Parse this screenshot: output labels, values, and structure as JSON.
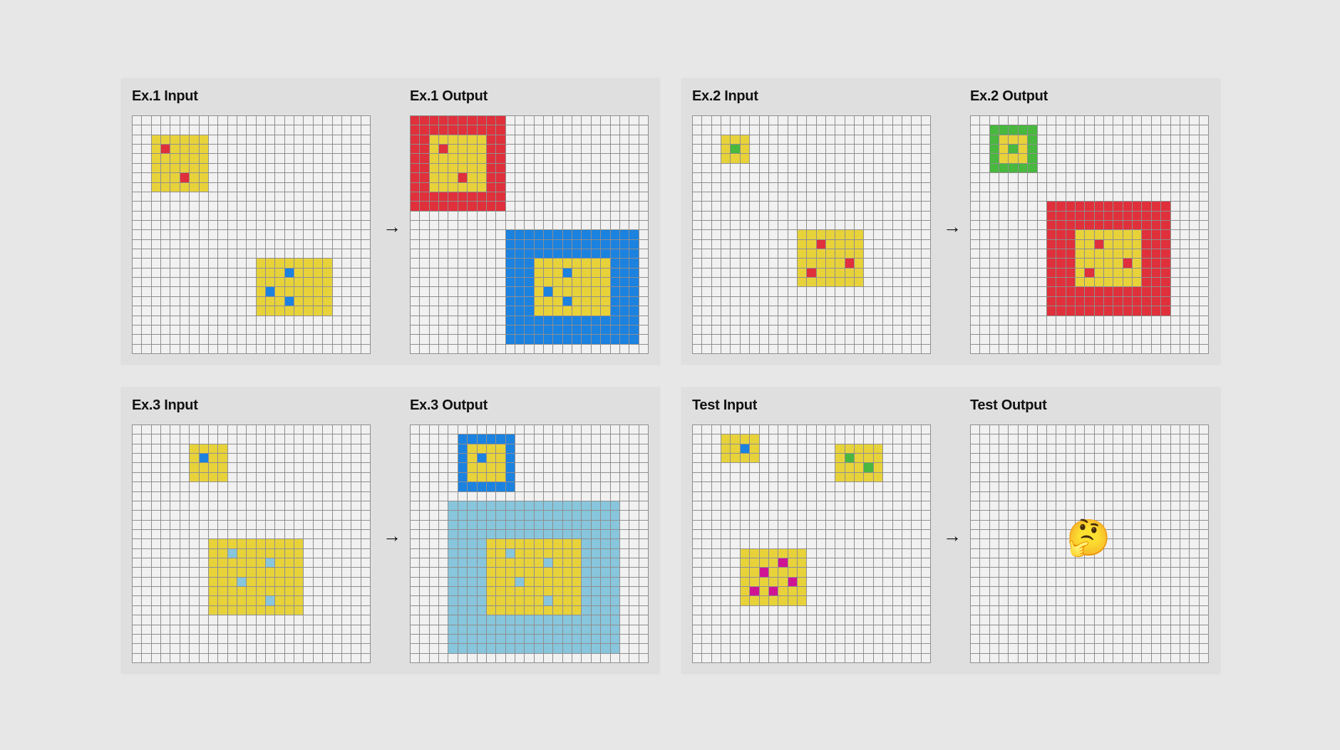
{
  "colors": {
    "Y": "#e8d23a",
    "R": "#e0303b",
    "B": "#1b82e0",
    "G": "#48b83e",
    "C": "#87c6dc",
    "M": "#cf1493"
  },
  "emoji": "🤔",
  "panels": [
    {
      "arrow": "→",
      "left": {
        "title": "Ex.1 Input",
        "rects": [
          {
            "r": 2,
            "c": 2,
            "h": 6,
            "w": 6,
            "color": "Y"
          },
          {
            "r": 15,
            "c": 13,
            "h": 6,
            "w": 8,
            "color": "Y"
          }
        ],
        "cells": [
          {
            "r": 3,
            "c": 3,
            "color": "R"
          },
          {
            "r": 6,
            "c": 5,
            "color": "R"
          },
          {
            "r": 16,
            "c": 16,
            "color": "B"
          },
          {
            "r": 18,
            "c": 14,
            "color": "B"
          },
          {
            "r": 19,
            "c": 16,
            "color": "B"
          }
        ]
      },
      "right": {
        "title": "Ex.1 Output",
        "rects": [
          {
            "r": 0,
            "c": 0,
            "h": 10,
            "w": 10,
            "color": "R"
          },
          {
            "r": 2,
            "c": 2,
            "h": 6,
            "w": 6,
            "color": "Y"
          },
          {
            "r": 12,
            "c": 10,
            "h": 12,
            "w": 14,
            "color": "B"
          },
          {
            "r": 15,
            "c": 13,
            "h": 6,
            "w": 8,
            "color": "Y"
          }
        ],
        "cells": [
          {
            "r": 3,
            "c": 3,
            "color": "R"
          },
          {
            "r": 6,
            "c": 5,
            "color": "R"
          },
          {
            "r": 16,
            "c": 16,
            "color": "B"
          },
          {
            "r": 18,
            "c": 14,
            "color": "B"
          },
          {
            "r": 19,
            "c": 16,
            "color": "B"
          }
        ]
      }
    },
    {
      "arrow": "→",
      "left": {
        "title": "Ex.2 Input",
        "rects": [
          {
            "r": 2,
            "c": 3,
            "h": 3,
            "w": 3,
            "color": "Y"
          },
          {
            "r": 12,
            "c": 11,
            "h": 6,
            "w": 7,
            "color": "Y"
          }
        ],
        "cells": [
          {
            "r": 3,
            "c": 4,
            "color": "G"
          },
          {
            "r": 13,
            "c": 13,
            "color": "R"
          },
          {
            "r": 15,
            "c": 16,
            "color": "R"
          },
          {
            "r": 16,
            "c": 12,
            "color": "R"
          }
        ]
      },
      "right": {
        "title": "Ex.2 Output",
        "rects": [
          {
            "r": 1,
            "c": 2,
            "h": 5,
            "w": 5,
            "color": "G"
          },
          {
            "r": 2,
            "c": 3,
            "h": 3,
            "w": 3,
            "color": "Y"
          },
          {
            "r": 9,
            "c": 8,
            "h": 12,
            "w": 13,
            "color": "R"
          },
          {
            "r": 12,
            "c": 11,
            "h": 6,
            "w": 7,
            "color": "Y"
          }
        ],
        "cells": [
          {
            "r": 3,
            "c": 4,
            "color": "G"
          },
          {
            "r": 13,
            "c": 13,
            "color": "R"
          },
          {
            "r": 15,
            "c": 16,
            "color": "R"
          },
          {
            "r": 16,
            "c": 12,
            "color": "R"
          }
        ]
      }
    },
    {
      "arrow": "→",
      "left": {
        "title": "Ex.3 Input",
        "rects": [
          {
            "r": 2,
            "c": 6,
            "h": 4,
            "w": 4,
            "color": "Y"
          },
          {
            "r": 12,
            "c": 8,
            "h": 8,
            "w": 10,
            "color": "Y"
          }
        ],
        "cells": [
          {
            "r": 3,
            "c": 7,
            "color": "B"
          },
          {
            "r": 13,
            "c": 10,
            "color": "C"
          },
          {
            "r": 14,
            "c": 14,
            "color": "C"
          },
          {
            "r": 16,
            "c": 11,
            "color": "C"
          },
          {
            "r": 18,
            "c": 14,
            "color": "C"
          }
        ]
      },
      "right": {
        "title": "Ex.3 Output",
        "rects": [
          {
            "r": 1,
            "c": 5,
            "h": 6,
            "w": 6,
            "color": "B"
          },
          {
            "r": 2,
            "c": 6,
            "h": 4,
            "w": 4,
            "color": "Y"
          },
          {
            "r": 8,
            "c": 4,
            "h": 16,
            "w": 18,
            "color": "C"
          },
          {
            "r": 12,
            "c": 8,
            "h": 8,
            "w": 10,
            "color": "Y"
          }
        ],
        "cells": [
          {
            "r": 3,
            "c": 7,
            "color": "B"
          },
          {
            "r": 13,
            "c": 10,
            "color": "C"
          },
          {
            "r": 14,
            "c": 14,
            "color": "C"
          },
          {
            "r": 16,
            "c": 11,
            "color": "C"
          },
          {
            "r": 18,
            "c": 14,
            "color": "C"
          }
        ]
      }
    },
    {
      "arrow": "→",
      "left": {
        "title": "Test Input",
        "rects": [
          {
            "r": 1,
            "c": 3,
            "h": 3,
            "w": 4,
            "color": "Y"
          },
          {
            "r": 2,
            "c": 15,
            "h": 4,
            "w": 5,
            "color": "Y"
          },
          {
            "r": 13,
            "c": 5,
            "h": 6,
            "w": 7,
            "color": "Y"
          }
        ],
        "cells": [
          {
            "r": 2,
            "c": 5,
            "color": "B"
          },
          {
            "r": 3,
            "c": 16,
            "color": "G"
          },
          {
            "r": 4,
            "c": 18,
            "color": "G"
          },
          {
            "r": 14,
            "c": 9,
            "color": "M"
          },
          {
            "r": 15,
            "c": 7,
            "color": "M"
          },
          {
            "r": 16,
            "c": 10,
            "color": "M"
          },
          {
            "r": 17,
            "c": 6,
            "color": "M"
          },
          {
            "r": 17,
            "c": 8,
            "color": "M"
          }
        ]
      },
      "right": {
        "title": "Test Output",
        "rects": [],
        "cells": []
      }
    }
  ]
}
